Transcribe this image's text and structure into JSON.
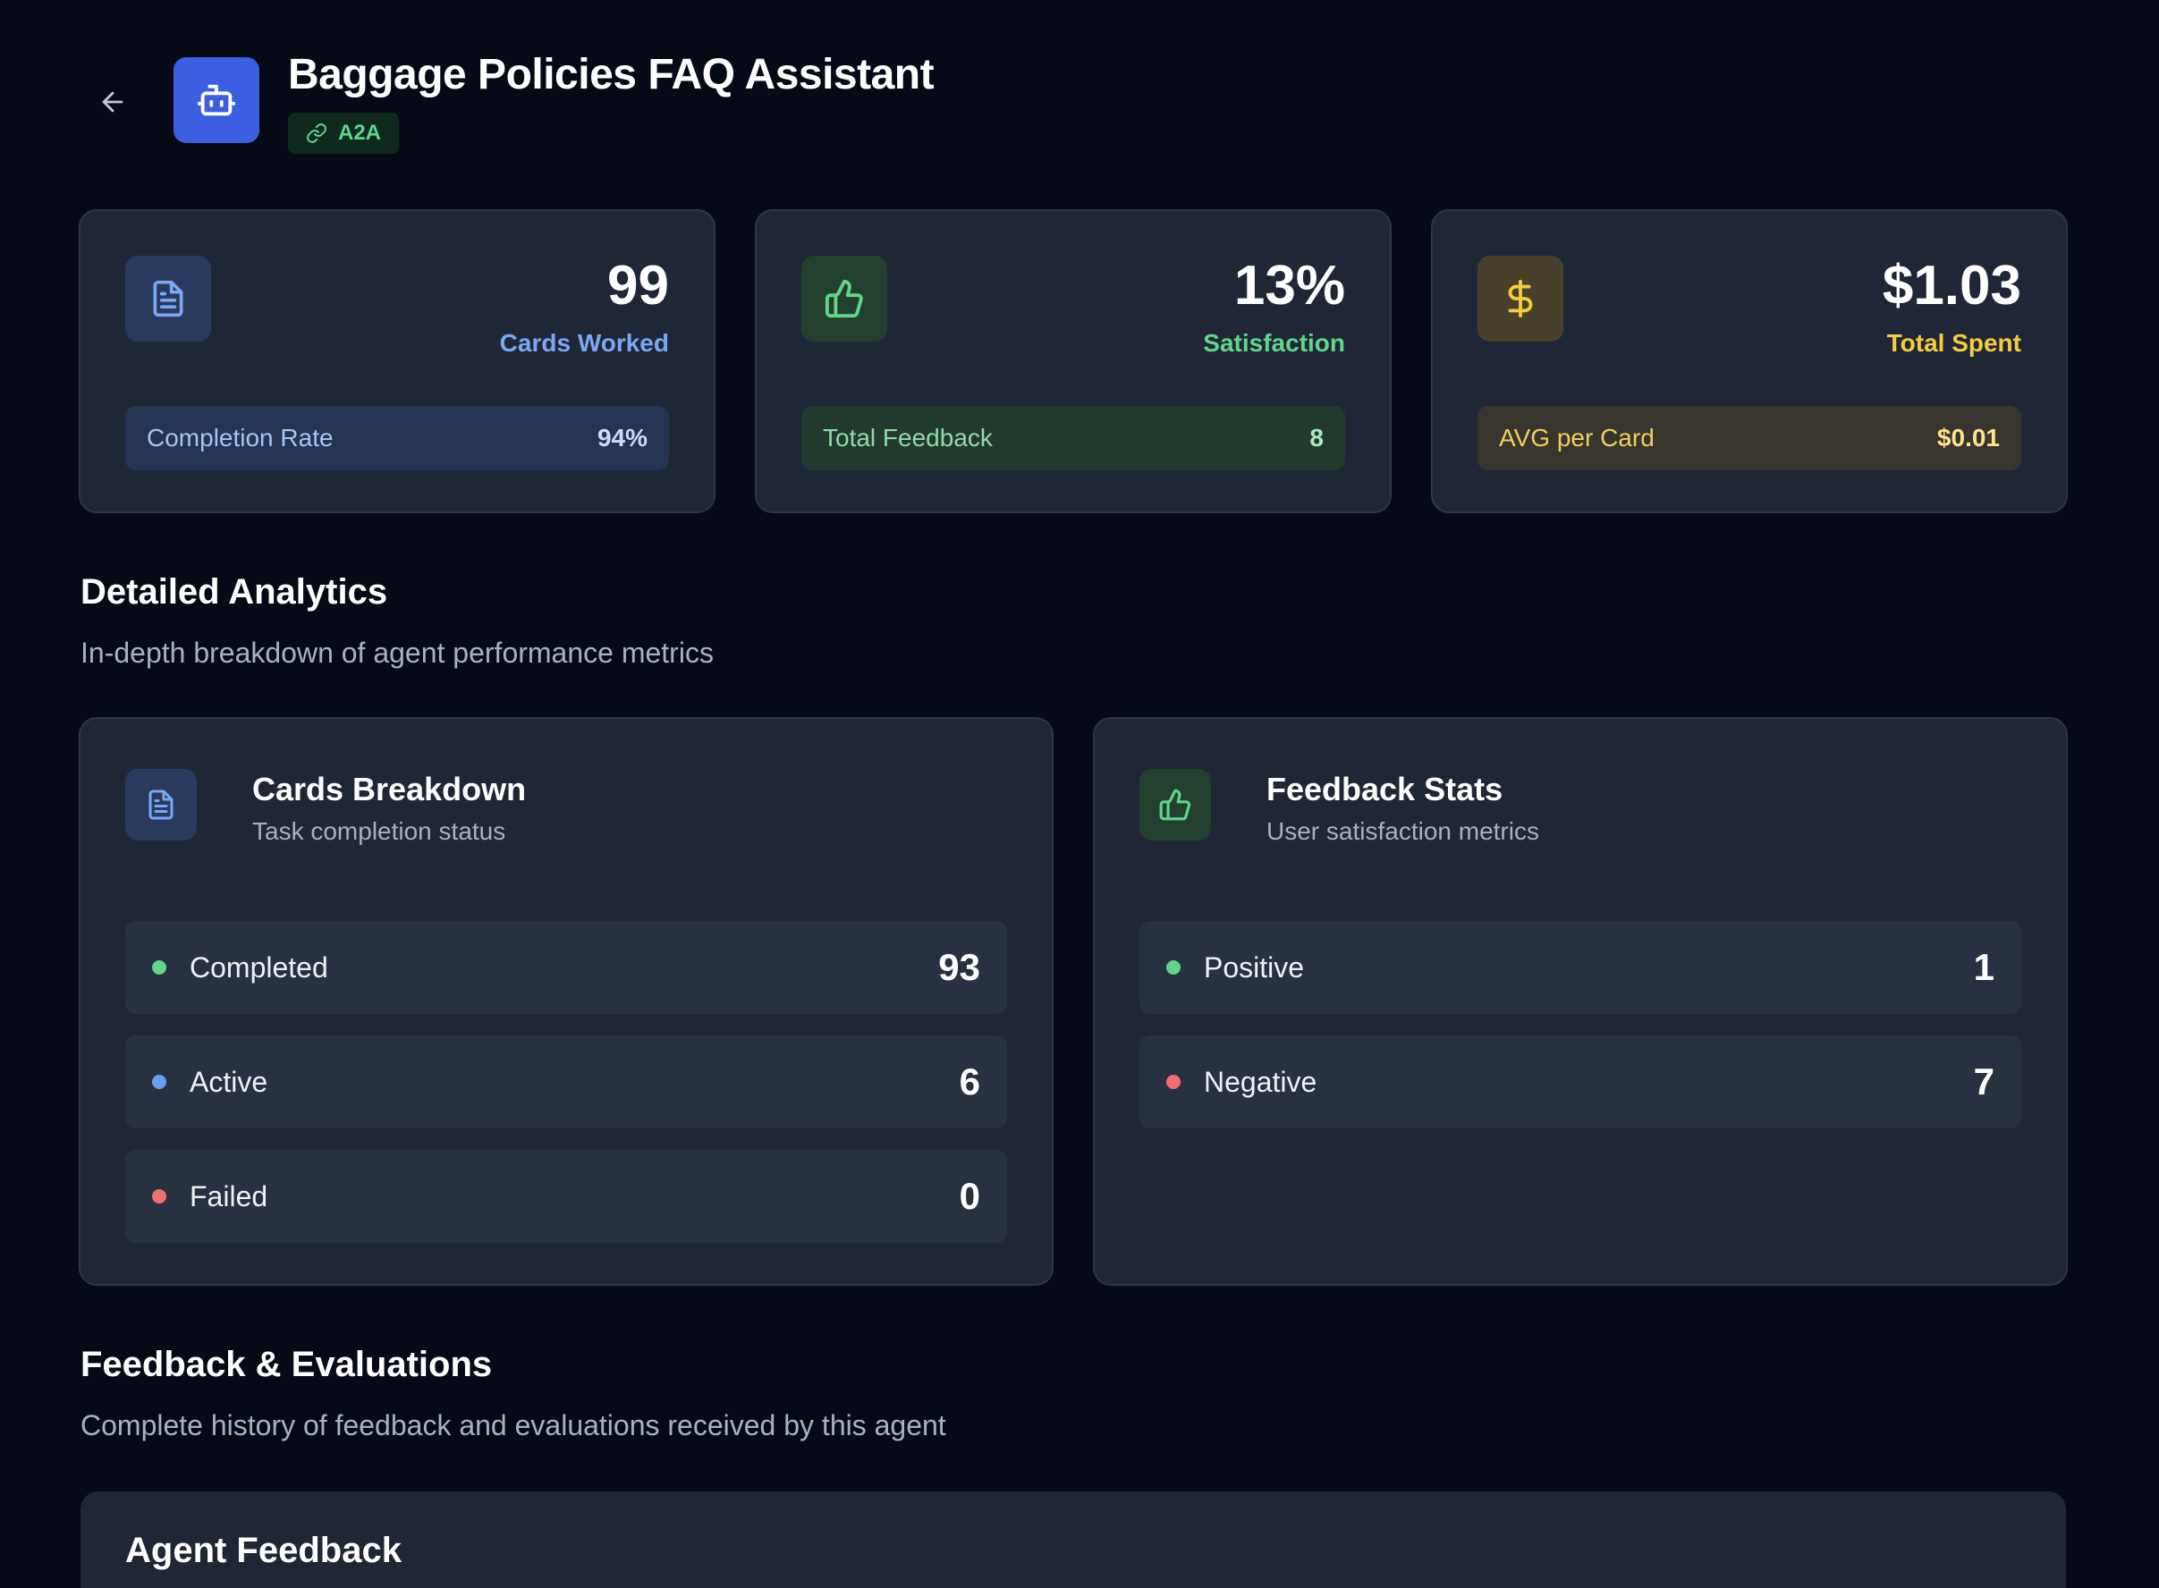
{
  "colors": {
    "background": "#060a16",
    "card": "#1f2736",
    "accent_blue": "#3b5fe0",
    "green": "#5fd68a",
    "blue": "#7aa8f5",
    "yellow": "#f4cd3c",
    "red": "#f07070"
  },
  "header": {
    "back_icon": "arrow-left-icon",
    "avatar_icon": "bot-icon",
    "title": "Baggage Policies FAQ Assistant",
    "badge": {
      "icon": "link-icon",
      "label": "A2A"
    }
  },
  "stats": [
    {
      "icon": "document-icon",
      "value": "99",
      "label": "Cards Worked",
      "sub_label": "Completion Rate",
      "sub_value": "94%"
    },
    {
      "icon": "thumbs-up-icon",
      "value": "13%",
      "label": "Satisfaction",
      "sub_label": "Total Feedback",
      "sub_value": "8"
    },
    {
      "icon": "dollar-icon",
      "value": "$1.03",
      "label": "Total Spent",
      "sub_label": "AVG per Card",
      "sub_value": "$0.01"
    }
  ],
  "analytics": {
    "title": "Detailed Analytics",
    "description": "In-depth breakdown of agent performance metrics",
    "cards_breakdown": {
      "icon": "document-icon",
      "title": "Cards Breakdown",
      "subtitle": "Task completion status",
      "rows": [
        {
          "label": "Completed",
          "value": "93",
          "status": "green"
        },
        {
          "label": "Active",
          "value": "6",
          "status": "blue"
        },
        {
          "label": "Failed",
          "value": "0",
          "status": "red"
        }
      ]
    },
    "feedback_stats": {
      "icon": "thumbs-up-icon",
      "title": "Feedback Stats",
      "subtitle": "User satisfaction metrics",
      "rows": [
        {
          "label": "Positive",
          "value": "1",
          "status": "green"
        },
        {
          "label": "Negative",
          "value": "7",
          "status": "red"
        }
      ]
    }
  },
  "feedback_section": {
    "title": "Feedback & Evaluations",
    "description": "Complete history of feedback and evaluations received by this agent",
    "card_title": "Agent Feedback"
  }
}
